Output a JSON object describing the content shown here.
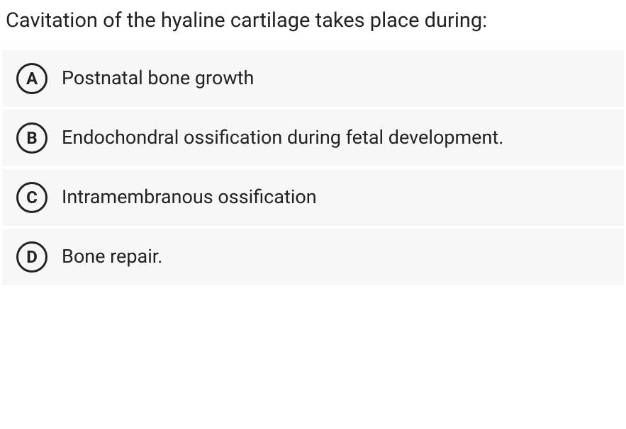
{
  "question": {
    "text": "Cavitation of the hyaline cartilage takes place during:",
    "text_color": "#222222",
    "text_fontsize": 29
  },
  "options": [
    {
      "letter": "A",
      "label": "Postnatal bone growth"
    },
    {
      "letter": "B",
      "label": "Endochondral ossification during fetal development."
    },
    {
      "letter": "C",
      "label": "Intramembranous ossification"
    },
    {
      "letter": "D",
      "label": "Bone repair."
    }
  ],
  "styling": {
    "option_background": "#f7f7f7",
    "badge_border_color": "#222222",
    "badge_text_color": "#222222",
    "option_text_color": "#222222",
    "option_fontsize": 27,
    "badge_fontsize": 24,
    "badge_size": 44,
    "badge_border_width": 3
  }
}
